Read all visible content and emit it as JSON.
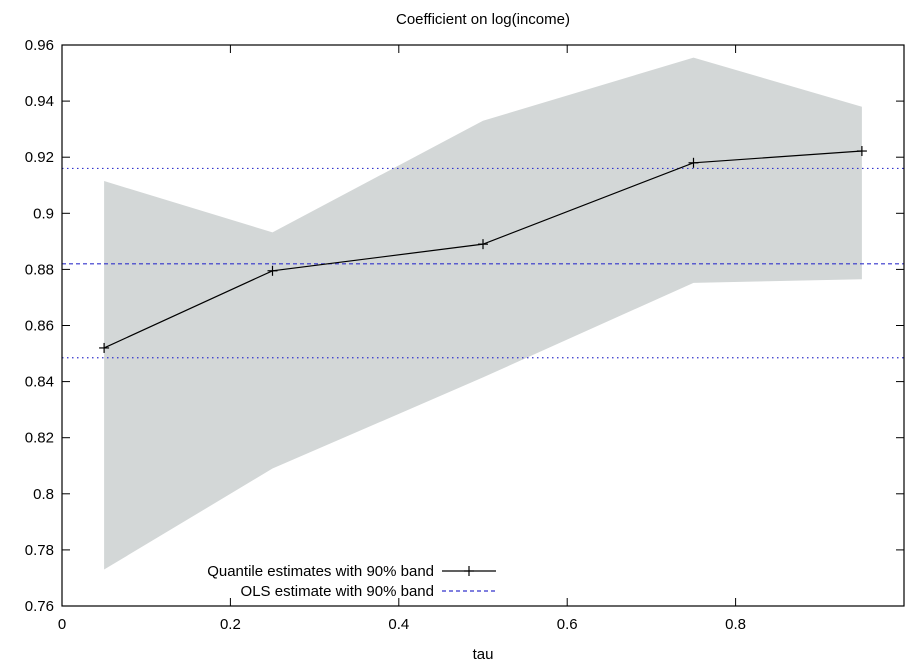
{
  "chart_data": {
    "type": "line",
    "title": "Coefficient on log(income)",
    "xlabel": "tau",
    "ylabel": "",
    "xlim": [
      0,
      1
    ],
    "ylim": [
      0.76,
      0.96
    ],
    "xticks": [
      0,
      0.2,
      0.4,
      0.6,
      0.8
    ],
    "xtick_labels": [
      "0",
      "0.2",
      "0.4",
      "0.6",
      "0.8"
    ],
    "yticks": [
      0.76,
      0.78,
      0.8,
      0.82,
      0.84,
      0.86,
      0.88,
      0.9,
      0.92,
      0.94,
      0.96
    ],
    "ytick_labels": [
      "0.76",
      "0.78",
      "0.8",
      "0.82",
      "0.84",
      "0.86",
      "0.88",
      "0.9",
      "0.92",
      "0.94",
      "0.96"
    ],
    "grid": false,
    "legend_position": "bottom-left",
    "series": [
      {
        "name": "Quantile estimates with 90% band",
        "x": [
          0.05,
          0.25,
          0.5,
          0.75,
          0.95
        ],
        "y": [
          0.852,
          0.8795,
          0.889,
          0.918,
          0.9222
        ],
        "lower": [
          0.773,
          0.809,
          0.8415,
          0.8752,
          0.8765
        ],
        "upper": [
          0.9115,
          0.8932,
          0.933,
          0.9555,
          0.938
        ],
        "color": "#000000",
        "band_color": "#d3d7d7"
      },
      {
        "name": "OLS estimate with 90% band",
        "estimate": 0.882,
        "lower": 0.8485,
        "upper": 0.916,
        "color": "#3333cc"
      }
    ]
  }
}
